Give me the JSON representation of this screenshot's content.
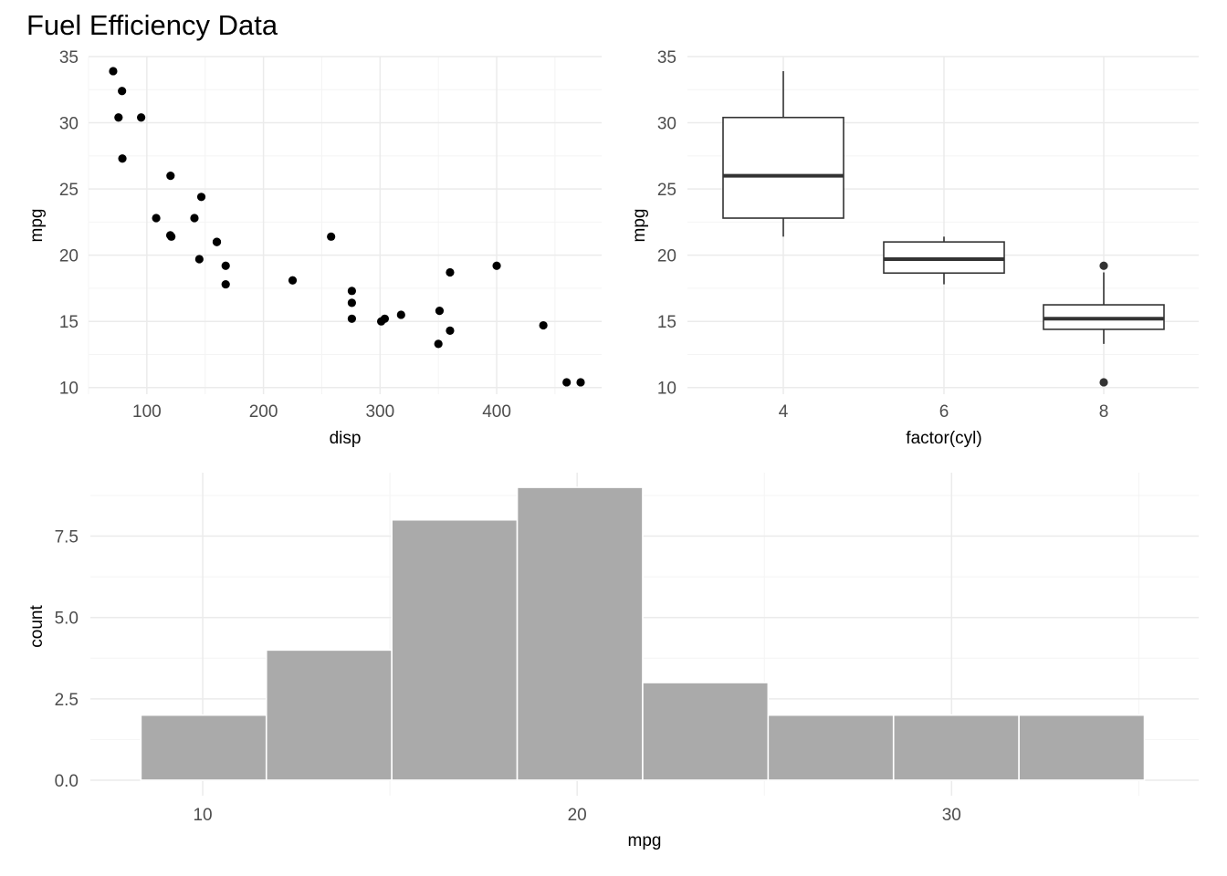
{
  "page": {
    "title": "Fuel Efficiency Data"
  },
  "colors": {
    "grid_major": "#ebebeb",
    "grid_minor": "#f4f4f4",
    "point": "#000000",
    "box_line": "#333333",
    "bar_fill": "#aaaaaa",
    "bar_stroke": "#ffffff",
    "tick_text": "#4d4d4d",
    "axis_title": "#000000"
  },
  "chart_data": [
    {
      "type": "scatter",
      "xlabel": "disp",
      "ylabel": "mpg",
      "xlim": [
        50,
        490
      ],
      "ylim": [
        9.5,
        35
      ],
      "x_ticks": [
        100,
        200,
        300,
        400
      ],
      "y_ticks": [
        10,
        15,
        20,
        25,
        30,
        35
      ],
      "grid": true,
      "points": [
        {
          "x": 160,
          "y": 21.0
        },
        {
          "x": 160,
          "y": 21.0
        },
        {
          "x": 108,
          "y": 22.8
        },
        {
          "x": 258,
          "y": 21.4
        },
        {
          "x": 360,
          "y": 18.7
        },
        {
          "x": 225,
          "y": 18.1
        },
        {
          "x": 360,
          "y": 14.3
        },
        {
          "x": 146.7,
          "y": 24.4
        },
        {
          "x": 140.8,
          "y": 22.8
        },
        {
          "x": 167.6,
          "y": 19.2
        },
        {
          "x": 167.6,
          "y": 17.8
        },
        {
          "x": 275.8,
          "y": 16.4
        },
        {
          "x": 275.8,
          "y": 17.3
        },
        {
          "x": 275.8,
          "y": 15.2
        },
        {
          "x": 472,
          "y": 10.4
        },
        {
          "x": 460,
          "y": 10.4
        },
        {
          "x": 440,
          "y": 14.7
        },
        {
          "x": 78.7,
          "y": 32.4
        },
        {
          "x": 75.7,
          "y": 30.4
        },
        {
          "x": 71.1,
          "y": 33.9
        },
        {
          "x": 120.1,
          "y": 21.5
        },
        {
          "x": 318,
          "y": 15.5
        },
        {
          "x": 304,
          "y": 15.2
        },
        {
          "x": 350,
          "y": 13.3
        },
        {
          "x": 400,
          "y": 19.2
        },
        {
          "x": 79,
          "y": 27.3
        },
        {
          "x": 120.3,
          "y": 26.0
        },
        {
          "x": 95.1,
          "y": 30.4
        },
        {
          "x": 351,
          "y": 15.8
        },
        {
          "x": 145,
          "y": 19.7
        },
        {
          "x": 301,
          "y": 15.0
        },
        {
          "x": 121,
          "y": 21.4
        }
      ]
    },
    {
      "type": "box",
      "xlabel": "factor(cyl)",
      "ylabel": "mpg",
      "ylim": [
        9.5,
        35
      ],
      "categories": [
        "4",
        "6",
        "8"
      ],
      "y_ticks": [
        10,
        15,
        20,
        25,
        30,
        35
      ],
      "grid": true,
      "boxes": [
        {
          "category": "4",
          "lower_whisker": 21.4,
          "q1": 22.8,
          "median": 26.0,
          "q3": 30.4,
          "upper_whisker": 33.9,
          "outliers": []
        },
        {
          "category": "6",
          "lower_whisker": 17.8,
          "q1": 18.65,
          "median": 19.7,
          "q3": 21.0,
          "upper_whisker": 21.4,
          "outliers": []
        },
        {
          "category": "8",
          "lower_whisker": 13.3,
          "q1": 14.4,
          "median": 15.2,
          "q3": 16.25,
          "upper_whisker": 18.7,
          "outliers": [
            19.2,
            10.4
          ]
        }
      ]
    },
    {
      "type": "histogram",
      "xlabel": "mpg",
      "ylabel": "count",
      "xlim": [
        7.0,
        36.6
      ],
      "ylim": [
        0,
        9.45
      ],
      "x_ticks": [
        10,
        20,
        30
      ],
      "y_ticks": [
        0.0,
        2.5,
        5.0,
        7.5
      ],
      "y_tick_labels": [
        "0.0",
        "2.5",
        "5.0",
        "7.5"
      ],
      "grid": true,
      "bins": [
        {
          "x0": 8.35,
          "x1": 11.7,
          "count": 2
        },
        {
          "x0": 11.7,
          "x1": 15.05,
          "count": 4
        },
        {
          "x0": 15.05,
          "x1": 18.4,
          "count": 8
        },
        {
          "x0": 18.4,
          "x1": 21.75,
          "count": 9
        },
        {
          "x0": 21.75,
          "x1": 25.1,
          "count": 3
        },
        {
          "x0": 25.1,
          "x1": 28.45,
          "count": 2
        },
        {
          "x0": 28.45,
          "x1": 31.8,
          "count": 2
        },
        {
          "x0": 31.8,
          "x1": 35.15,
          "count": 2
        }
      ]
    }
  ]
}
